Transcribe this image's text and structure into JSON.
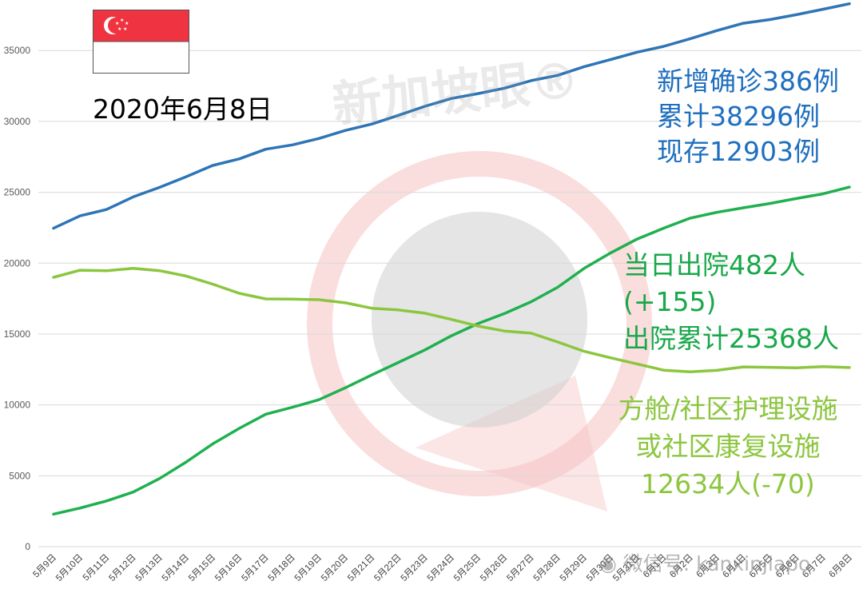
{
  "header": {
    "date": "2020年6月8日",
    "watermark": "新加坡眼®",
    "credit": "微信号: kanxinjiapo"
  },
  "annotations": {
    "blue": [
      "新增确诊386例",
      "累计38296例",
      "现存12903例"
    ],
    "green": [
      "当日出院482人",
      "(+155)",
      "出院累计25368人"
    ],
    "lightgreen": [
      "方舱/社区护理设施",
      "或社区康复设施",
      "12634人(-70)"
    ]
  },
  "colors": {
    "blue": "#2e75b6",
    "green": "#1fb04f",
    "lightgreen": "#8cc63f",
    "grid": "#d9d9d9",
    "flag_red": "#ef3340",
    "watermark_red": "#f7c6c6",
    "watermark_gray": "#cfcfcf"
  },
  "icons": {
    "flag": "singapore-flag-icon",
    "watermark": "kanxinjiapo-logo-icon",
    "wechat": "wechat-icon"
  },
  "chart_data": {
    "type": "line",
    "title": "",
    "xlabel": "",
    "ylabel": "",
    "ylim": [
      0,
      38000
    ],
    "yticks": [
      0,
      5000,
      10000,
      15000,
      20000,
      25000,
      30000,
      35000
    ],
    "grid": true,
    "legend": "none",
    "categories": [
      "5月9日",
      "5月10日",
      "5月11日",
      "5月12日",
      "5月13日",
      "5月14日",
      "5月15日",
      "5月16日",
      "5月17日",
      "5月18日",
      "5月19日",
      "5月20日",
      "5月21日",
      "5月22日",
      "5月23日",
      "5月24日",
      "5月25日",
      "5月26日",
      "5月27日",
      "5月28日",
      "5月29日",
      "5月30日",
      "5月31日",
      "6月1日",
      "6月2日",
      "6月3日",
      "6月4日",
      "6月5日",
      "6月6日",
      "6月7日",
      "6月8日"
    ],
    "series": [
      {
        "color": "#2e75b6",
        "values": [
          22460,
          23336,
          23787,
          24671,
          25346,
          26098,
          26891,
          27356,
          28038,
          28343,
          28794,
          29364,
          29812,
          30426,
          31068,
          31616,
          31960,
          32343,
          32876,
          33249,
          33860,
          34366,
          34884,
          35292,
          35836,
          36405,
          36922,
          37183,
          37527,
          37910,
          38296
        ]
      },
      {
        "color": "#1fb04f",
        "values": [
          2296,
          2721,
          3225,
          3851,
          4809,
          5973,
          7248,
          8342,
          9340,
          9835,
          10365,
          11207,
          12117,
          12995,
          13882,
          14876,
          15738,
          16444,
          17276,
          18294,
          19631,
          20727,
          21699,
          22466,
          23175,
          23582,
          23904,
          24209,
          24559,
          24886,
          25368
        ]
      },
      {
        "color": "#8cc63f",
        "values": [
          19000,
          19500,
          19470,
          19630,
          19470,
          19090,
          18520,
          17870,
          17480,
          17460,
          17420,
          17200,
          16820,
          16700,
          16470,
          16030,
          15560,
          15210,
          15060,
          14440,
          13780,
          13320,
          12890,
          12450,
          12330,
          12440,
          12680,
          12650,
          12620,
          12704,
          12634
        ]
      }
    ]
  }
}
